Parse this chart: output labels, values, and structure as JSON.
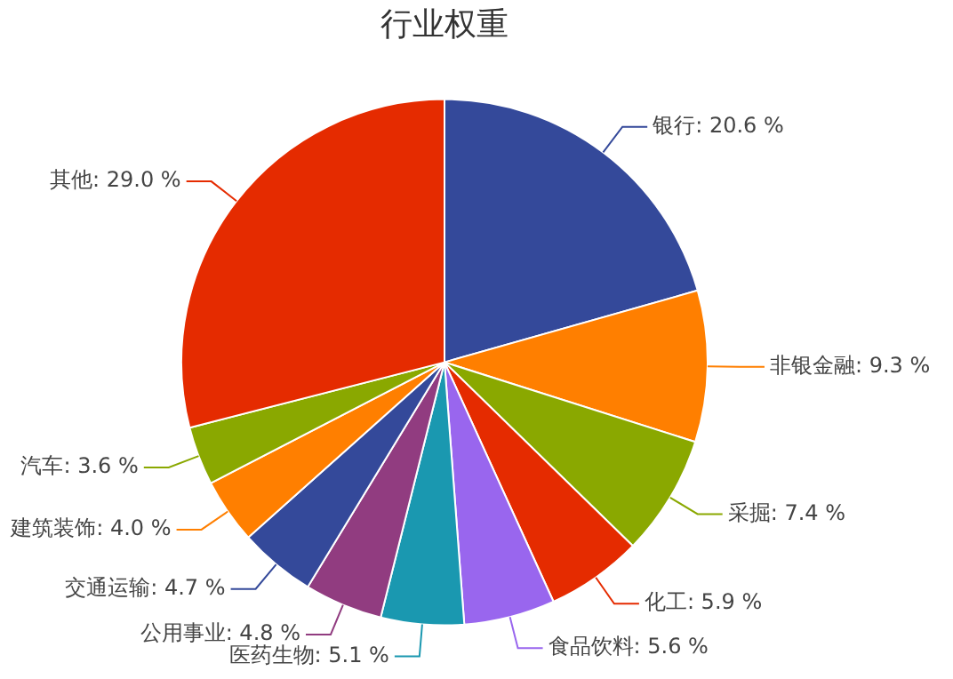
{
  "chart_data": {
    "type": "pie",
    "title": "行业权重",
    "categories": [
      "银行",
      "非银金融",
      "采掘",
      "化工",
      "食品饮料",
      "医药生物",
      "公用事业",
      "交通运输",
      "建筑装饰",
      "汽车",
      "其他"
    ],
    "values": [
      20.6,
      9.3,
      7.4,
      5.9,
      5.6,
      5.1,
      4.8,
      4.7,
      4.0,
      3.6,
      29.0
    ],
    "value_labels": [
      "20.6 %",
      "9.3 %",
      "7.4 %",
      "5.9 %",
      "5.6 %",
      "5.1 %",
      "4.8 %",
      "4.7 %",
      "4.0 %",
      "3.6 %",
      "29.0 %"
    ],
    "colors": [
      "#34499a",
      "#ff7f00",
      "#8aa800",
      "#e52b00",
      "#9966ee",
      "#1a98b0",
      "#913c80",
      "#34499a",
      "#ff7f00",
      "#8aa800",
      "#e52b00"
    ],
    "legend": false
  }
}
